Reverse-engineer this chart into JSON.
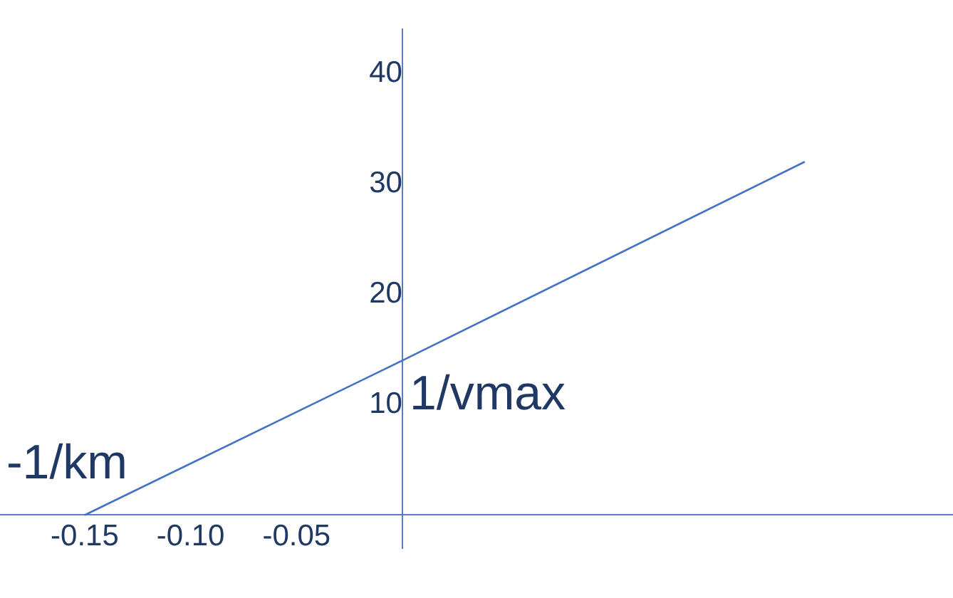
{
  "chart_data": {
    "type": "line",
    "x": [
      -0.15,
      0,
      0.19
    ],
    "series": [
      {
        "color": "#4472c4",
        "values": [
          0,
          14,
          32
        ]
      }
    ],
    "xlim": [
      -0.19,
      0.26
    ],
    "ylim": [
      -3,
      44
    ],
    "xticks": [
      {
        "value": -0.15,
        "label": "-0.15"
      },
      {
        "value": -0.1,
        "label": "-0.10"
      },
      {
        "value": -0.05,
        "label": "-0.05"
      }
    ],
    "yticks": [
      10,
      20,
      30,
      40
    ],
    "grid": false,
    "legend": false,
    "marker": "none",
    "line_style": "solid",
    "annotations": [
      {
        "text": "-1/km",
        "x": -0.15,
        "y": 0
      },
      {
        "text": "1/vmax",
        "x": 0,
        "y": 14
      }
    ]
  }
}
